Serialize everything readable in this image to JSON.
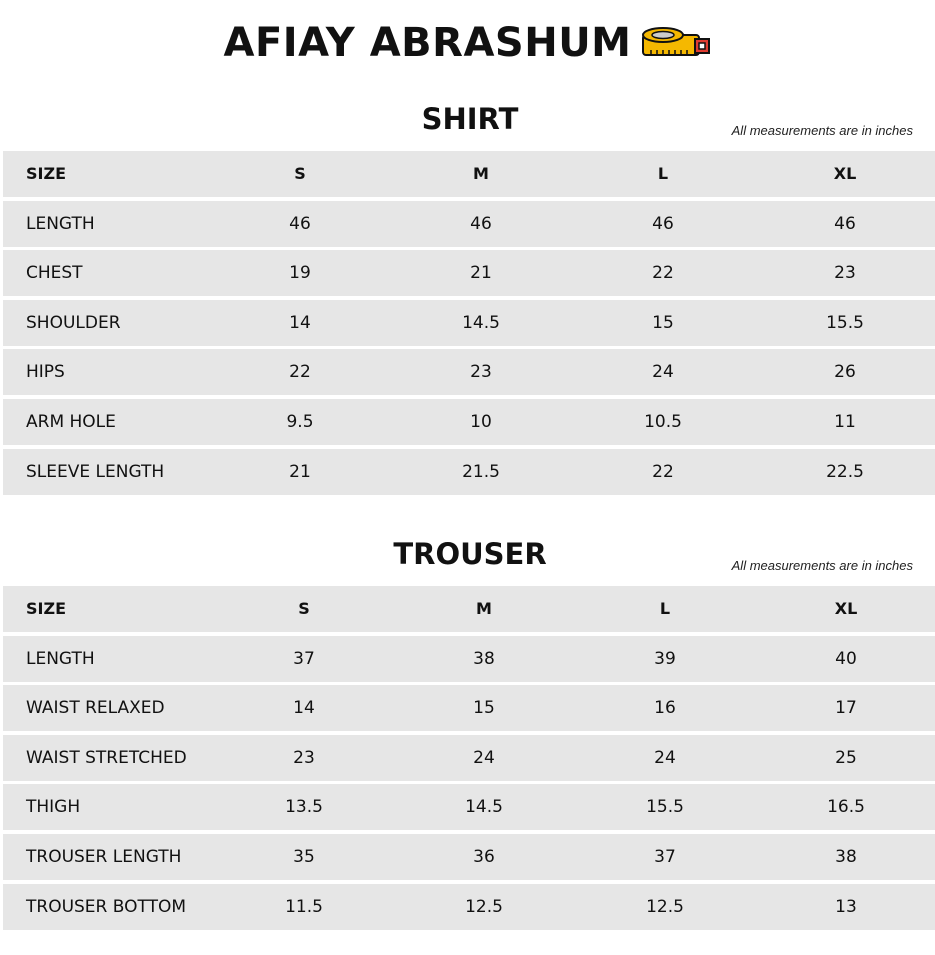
{
  "brand": {
    "title": "AFIAY ABRASHUM",
    "icon": "measuring-tape-icon"
  },
  "tables": [
    {
      "title": "SHIRT",
      "note": "All measurements are in inches",
      "header": [
        "SIZE",
        "S",
        "M",
        "L",
        "XL"
      ],
      "rows": [
        [
          "LENGTH",
          "46",
          "46",
          "46",
          "46"
        ],
        [
          "CHEST",
          "19",
          "21",
          "22",
          "23"
        ],
        [
          "SHOULDER",
          "14",
          "14.5",
          "15",
          "15.5"
        ],
        [
          "HIPS",
          "22",
          "23",
          "24",
          "26"
        ],
        [
          "ARM HOLE",
          "9.5",
          "10",
          "10.5",
          "11"
        ],
        [
          "SLEEVE LENGTH",
          "21",
          "21.5",
          "22",
          "22.5"
        ]
      ]
    },
    {
      "title": "TROUSER",
      "note": "All measurements are in inches",
      "header": [
        "SIZE",
        "S",
        "M",
        "L",
        "XL"
      ],
      "rows": [
        [
          "LENGTH",
          "37",
          "38",
          "39",
          "40"
        ],
        [
          "WAIST RELAXED",
          "14",
          "15",
          "16",
          "17"
        ],
        [
          "WAIST STRETCHED",
          "23",
          "24",
          "24",
          "25"
        ],
        [
          "THIGH",
          "13.5",
          "14.5",
          "15.5",
          "16.5"
        ],
        [
          "TROUSER LENGTH",
          "35",
          "36",
          "37",
          "38"
        ],
        [
          "TROUSER BOTTOM",
          "11.5",
          "12.5",
          "12.5",
          "13"
        ]
      ]
    }
  ]
}
